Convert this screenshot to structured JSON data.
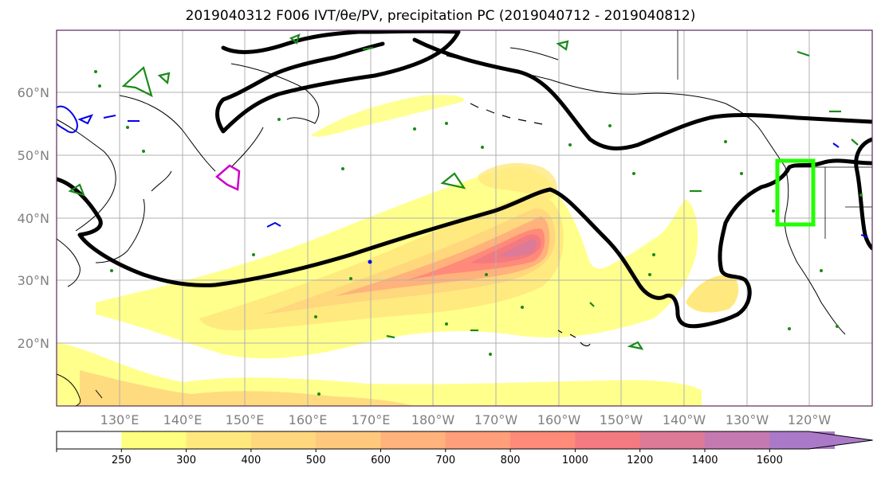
{
  "title": "2019040312 F006 IVT/θe/PV, precipitation PC (2019040712 - 2019040812)",
  "lat_labels": [
    "60°N",
    "50°N",
    "40°N",
    "30°N",
    "20°N"
  ],
  "lon_labels": [
    "130°E",
    "140°E",
    "150°E",
    "160°E",
    "170°E",
    "180°W",
    "170°W",
    "160°W",
    "150°W",
    "140°W",
    "130°W",
    "120°W"
  ],
  "colorbar": {
    "ticks": [
      "250",
      "300",
      "400",
      "500",
      "600",
      "700",
      "800",
      "1000",
      "1200",
      "1400",
      "1600"
    ],
    "colors": [
      "#ffffff",
      "#ffff7f",
      "#ffe97e",
      "#ffd77d",
      "#ffc87c",
      "#ffb27b",
      "#ff9f7a",
      "#ff8a79",
      "#f27a80",
      "#dc7a98",
      "#c47ab1",
      "#aa7ac8"
    ]
  },
  "colors": {
    "contour_thick": "#000000",
    "contour_green": "#1a8a1a",
    "contour_blue": "#0000ee",
    "contour_magenta": "#cc00cc",
    "box_lime": "#22ff00",
    "grid": "#b0b0b0"
  }
}
